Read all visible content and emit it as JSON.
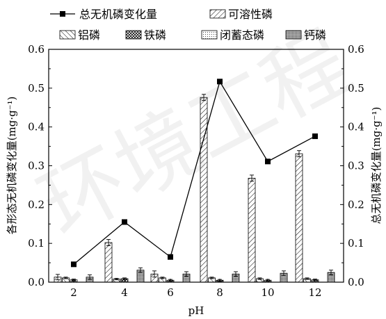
{
  "chart_data": {
    "type": "bar",
    "xlabel": "pH",
    "ylabel_left": "各形态无机磷变化量(mg·g⁻¹)",
    "ylabel_right": "总无机磷变化量(mg·g⁻¹)",
    "ylim": [
      0,
      0.6
    ],
    "yticks": [
      "0.0",
      "0.1",
      "0.2",
      "0.3",
      "0.4",
      "0.5",
      "0.6"
    ],
    "categories": [
      "2",
      "4",
      "6",
      "8",
      "10",
      "12"
    ],
    "series": [
      {
        "name": "可溶性磷",
        "kind": "bar",
        "pattern": "diag",
        "values": [
          0.013,
          0.102,
          0.021,
          0.476,
          0.268,
          0.331
        ],
        "errors": [
          0.007,
          0.008,
          0.008,
          0.008,
          0.008,
          0.008
        ]
      },
      {
        "name": "铝磷",
        "kind": "bar",
        "pattern": "backdiag",
        "values": [
          0.011,
          0.008,
          0.011,
          0.011,
          0.009,
          0.009
        ],
        "errors": [
          0.002,
          0.002,
          0.002,
          0.002,
          0.002,
          0.002
        ]
      },
      {
        "name": "铁磷",
        "kind": "bar",
        "pattern": "cross",
        "values": [
          0.006,
          0.009,
          0.005,
          0.005,
          0.005,
          0.006
        ],
        "errors": [
          0.002,
          0.002,
          0.002,
          0.002,
          0.002,
          0.002
        ]
      },
      {
        "name": "闭蓄态磷",
        "kind": "bar",
        "pattern": "dots",
        "values": [
          0.0,
          0.0,
          0.0,
          0.0,
          0.0,
          0.0
        ],
        "errors": [
          0.0,
          0.0,
          0.0,
          0.0,
          0.0,
          0.0
        ]
      },
      {
        "name": "钙磷",
        "kind": "bar",
        "pattern": "dense",
        "values": [
          0.013,
          0.031,
          0.021,
          0.021,
          0.023,
          0.025
        ],
        "errors": [
          0.006,
          0.006,
          0.006,
          0.006,
          0.006,
          0.006
        ]
      },
      {
        "name": "总无机磷变化量",
        "kind": "line",
        "values": [
          0.046,
          0.155,
          0.065,
          0.517,
          0.311,
          0.376
        ]
      }
    ],
    "legend_placement": "top",
    "watermark": "环境工程"
  }
}
